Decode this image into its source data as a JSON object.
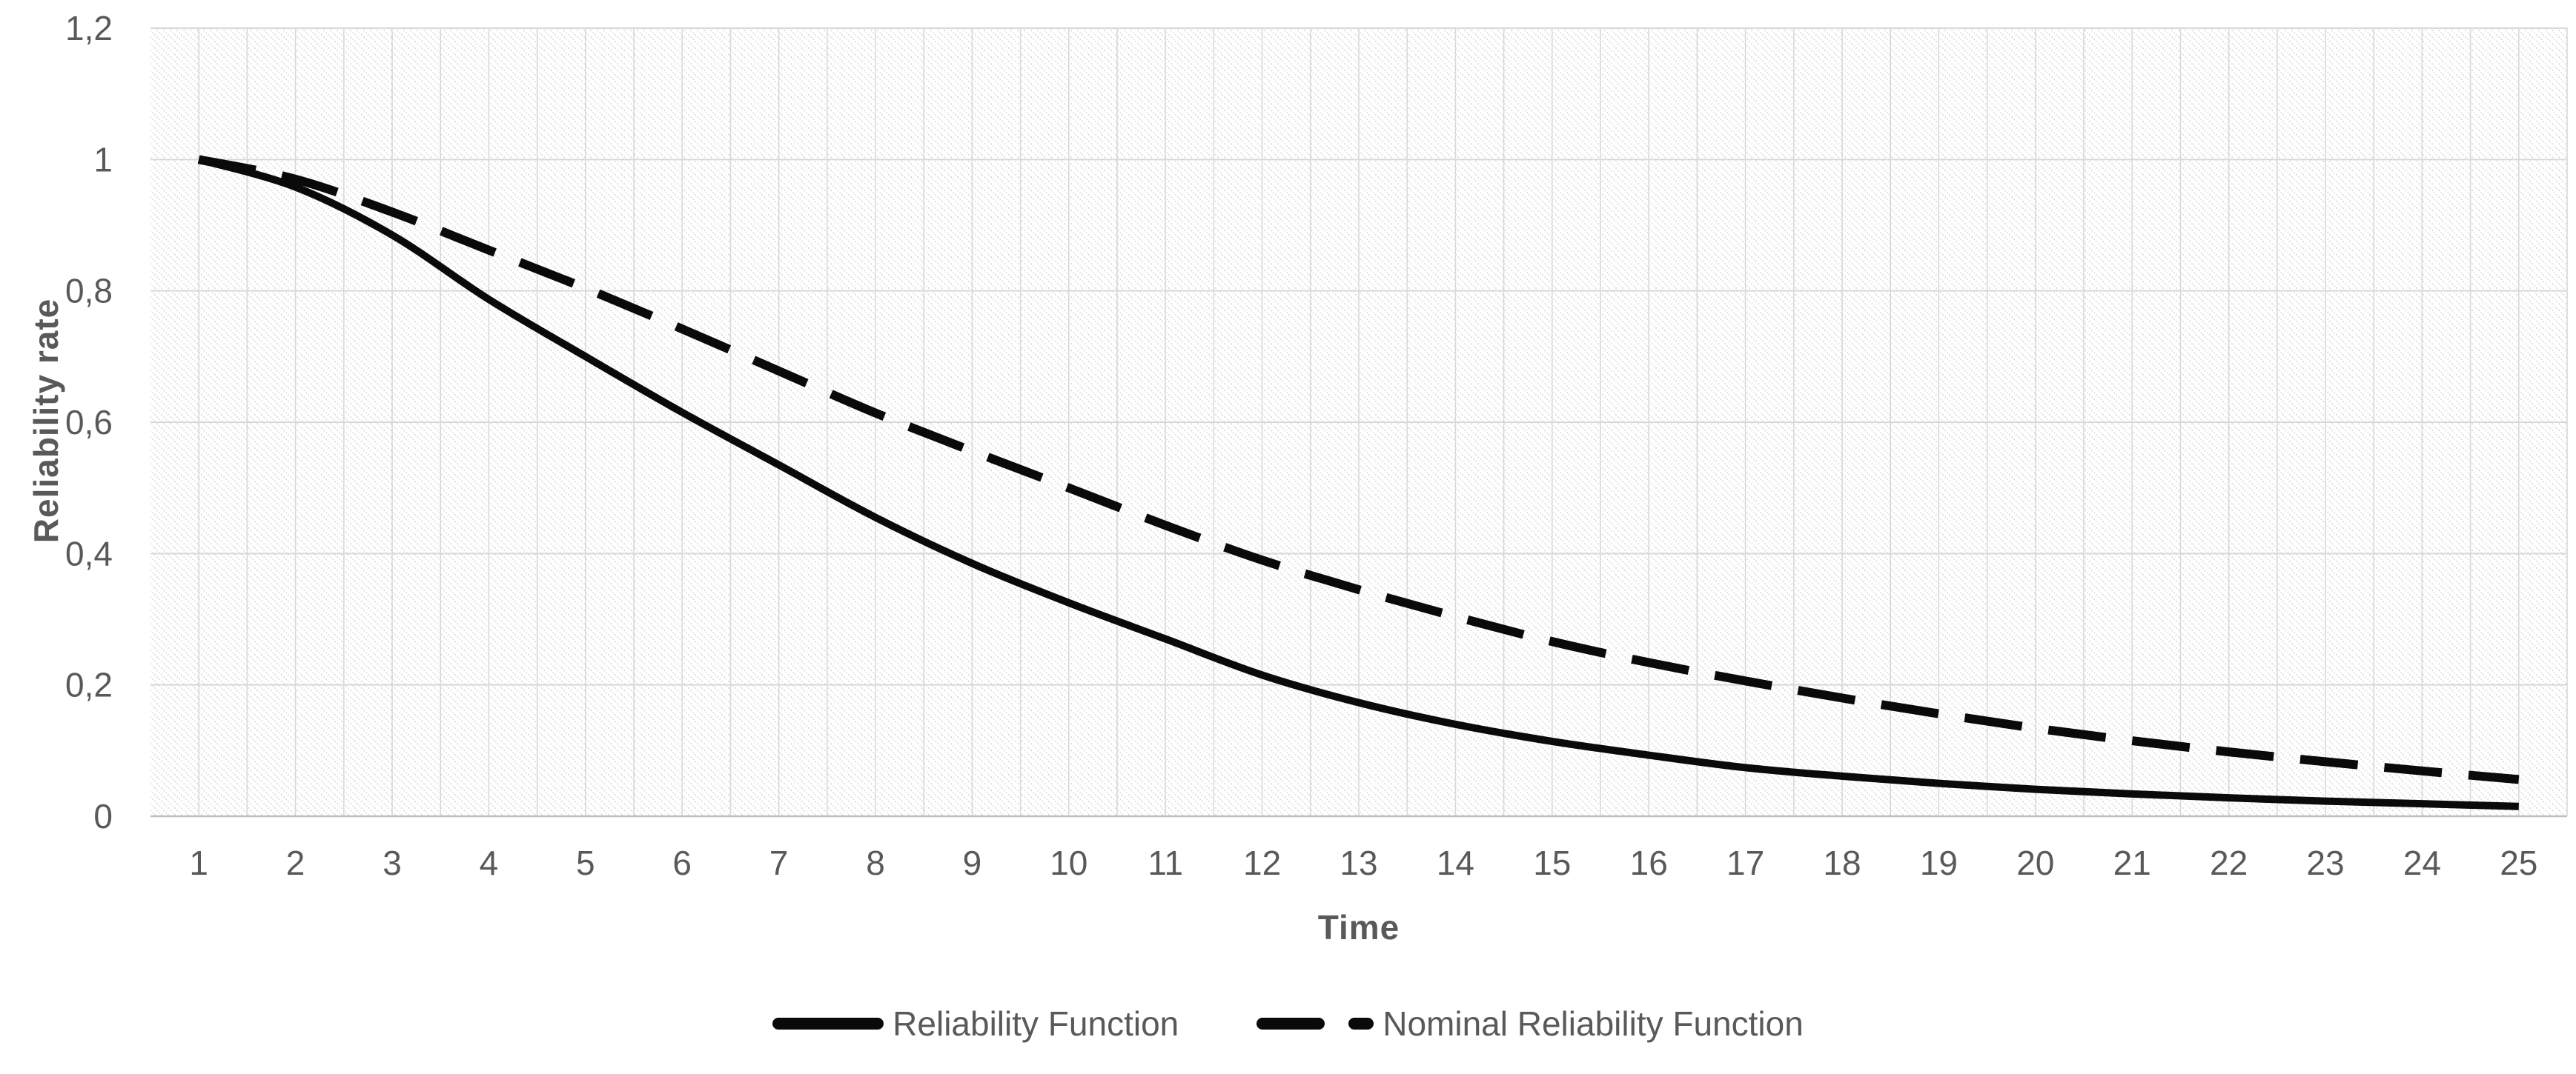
{
  "chart_data": {
    "type": "line",
    "title": "",
    "xlabel": "Time",
    "ylabel": "Reliability rate",
    "categories": [
      1,
      2,
      3,
      4,
      5,
      6,
      7,
      8,
      9,
      10,
      11,
      12,
      13,
      14,
      15,
      16,
      17,
      18,
      19,
      20,
      21,
      22,
      23,
      24,
      25
    ],
    "ylim": [
      0,
      1.2
    ],
    "y_tick_step": 0.2,
    "y_tick_labels": [
      "0",
      "0,2",
      "0,4",
      "0,6",
      "0,8",
      "1",
      "1,2"
    ],
    "grid": "horizontal major + vertical major and minor (half-step)",
    "plot_background": "light diagonal dotted hatch",
    "legend_position": "bottom-center",
    "series": [
      {
        "name": "Reliability Function",
        "style": "solid",
        "color": "#0a0a0a",
        "values": [
          1.0,
          0.958,
          0.885,
          0.787,
          0.7,
          0.615,
          0.535,
          0.455,
          0.385,
          0.325,
          0.27,
          0.215,
          0.173,
          0.14,
          0.114,
          0.093,
          0.074,
          0.061,
          0.05,
          0.041,
          0.034,
          0.028,
          0.023,
          0.019,
          0.015
        ]
      },
      {
        "name": "Nominal Reliability Function",
        "style": "dashed",
        "color": "#0a0a0a",
        "values": [
          1.0,
          0.97,
          0.92,
          0.862,
          0.804,
          0.742,
          0.678,
          0.614,
          0.556,
          0.5,
          0.443,
          0.39,
          0.345,
          0.304,
          0.266,
          0.234,
          0.206,
          0.18,
          0.156,
          0.134,
          0.115,
          0.098,
          0.083,
          0.069,
          0.056
        ]
      }
    ]
  },
  "colors": {
    "gridline": "#d9d9d9",
    "axis_line": "#bfbfbf",
    "hatch": "#d8d8d8",
    "label_text": "#595959",
    "series": "#0a0a0a"
  }
}
